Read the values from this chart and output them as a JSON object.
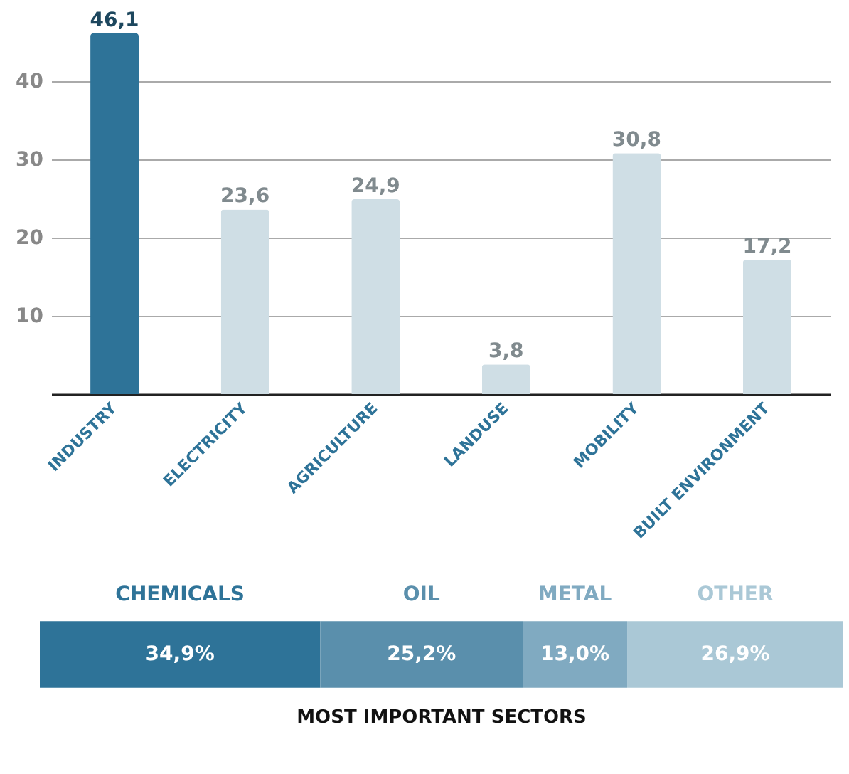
{
  "chart_data": [
    {
      "type": "bar",
      "categories": [
        "INDUSTRY",
        "ELECTRICITY",
        "AGRICULTURE",
        "LANDUSE",
        "MOBILITY",
        "BUILT ENVIRONMENT"
      ],
      "values": [
        46.1,
        23.6,
        24.9,
        3.8,
        30.8,
        17.2
      ],
      "colors": [
        "#2e7398",
        "#cfdee5",
        "#cfdee5",
        "#cfdee5",
        "#cfdee5",
        "#cfdee5"
      ],
      "value_labels": [
        "46,1",
        "23,6",
        "24,9",
        "3,8",
        "30,8",
        "17,2"
      ],
      "ylim": [
        0,
        50
      ],
      "yticks": [
        10,
        20,
        30,
        40
      ],
      "grid": "y"
    },
    {
      "type": "bar",
      "orientation": "horizontal",
      "stacked": true,
      "categories": [
        null
      ],
      "title": "MOST IMPORTANT SECTORS",
      "series": [
        {
          "name": "CHEMICALS",
          "color": "#2e7398",
          "values": [
            34.9
          ],
          "value_labels": [
            "34,9%"
          ]
        },
        {
          "name": "OIL",
          "color": "#5a8fac",
          "values": [
            25.2
          ],
          "value_labels": [
            "25,2%"
          ]
        },
        {
          "name": "METAL",
          "color": "#80aac1",
          "values": [
            13.0
          ],
          "value_labels": [
            "13,0%"
          ]
        },
        {
          "name": "OTHER",
          "color": "#aac8d6",
          "values": [
            26.9
          ],
          "value_labels": [
            "26,9%"
          ]
        }
      ]
    }
  ]
}
